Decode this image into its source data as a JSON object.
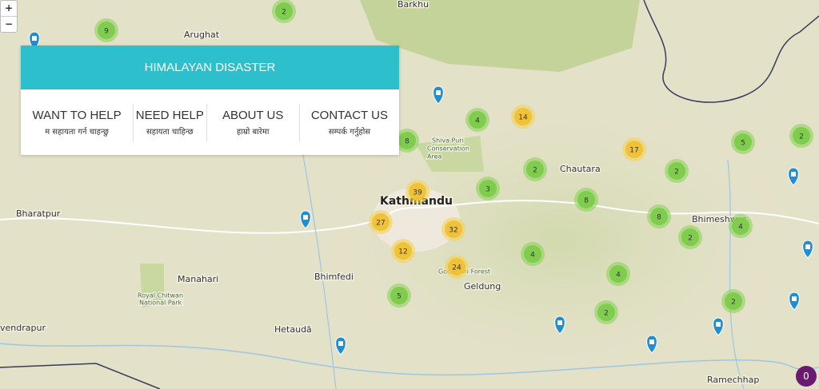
{
  "zoom": [
    "+",
    "−"
  ],
  "panel": {
    "title": "HIMALAYAN DISASTER",
    "menu": [
      {
        "en": "WANT TO HELP",
        "ne": "म सहायता गर्न चाहन्छु"
      },
      {
        "en": "NEED HELP",
        "ne": "सहायता चाहिन्छ"
      },
      {
        "en": "ABOUT US",
        "ne": "हाम्रो बारेमा"
      },
      {
        "en": "CONTACT US",
        "ne": "सम्पर्क गर्नुहोस"
      }
    ]
  },
  "places": [
    "Barkhu",
    "Arughat",
    "Bharatpur",
    "Kathmandu",
    "Chautara",
    "Bhimeshwar",
    "Manahari",
    "Bhimfedi",
    "Hetaudā",
    "Royal Chitwan",
    "National Park",
    "Shiva Puri",
    "Conservation",
    "Area",
    "Geldung",
    "Ramechhap",
    "vendrapur",
    "Godawari Forest"
  ],
  "clusters": [
    "2",
    "9",
    "14",
    "4",
    "8",
    "17",
    "5",
    "2",
    "2",
    "2",
    "39",
    "3",
    "8",
    "27",
    "8",
    "32",
    "4",
    "2",
    "12",
    "24",
    "4",
    "4",
    "5",
    "2",
    "2"
  ],
  "badge": "0"
}
